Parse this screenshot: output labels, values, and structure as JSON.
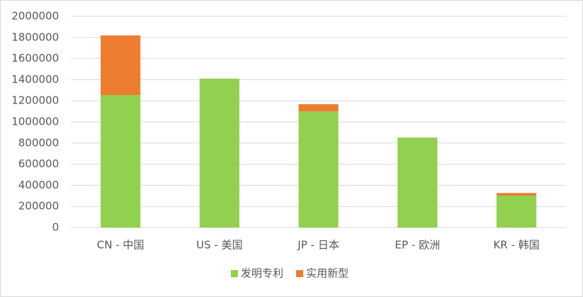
{
  "chart_data": {
    "type": "stacked-bar",
    "categories": [
      "CN - 中国",
      "US - 美国",
      "JP - 日本",
      "EP - 欧洲",
      "KR - 韩国"
    ],
    "series": [
      {
        "name": "发明专利",
        "color": "#92d050",
        "values": [
          1255000,
          1410000,
          1100000,
          852000,
          302000
        ]
      },
      {
        "name": "实用新型",
        "color": "#ed7d31",
        "values": [
          564000,
          0,
          68000,
          0,
          25000
        ]
      }
    ],
    "ylim": [
      0,
      2000000
    ],
    "yticks": [
      0,
      200000,
      400000,
      600000,
      800000,
      1000000,
      1200000,
      1400000,
      1600000,
      1800000,
      2000000
    ],
    "grid": true,
    "legend": "bottom"
  }
}
